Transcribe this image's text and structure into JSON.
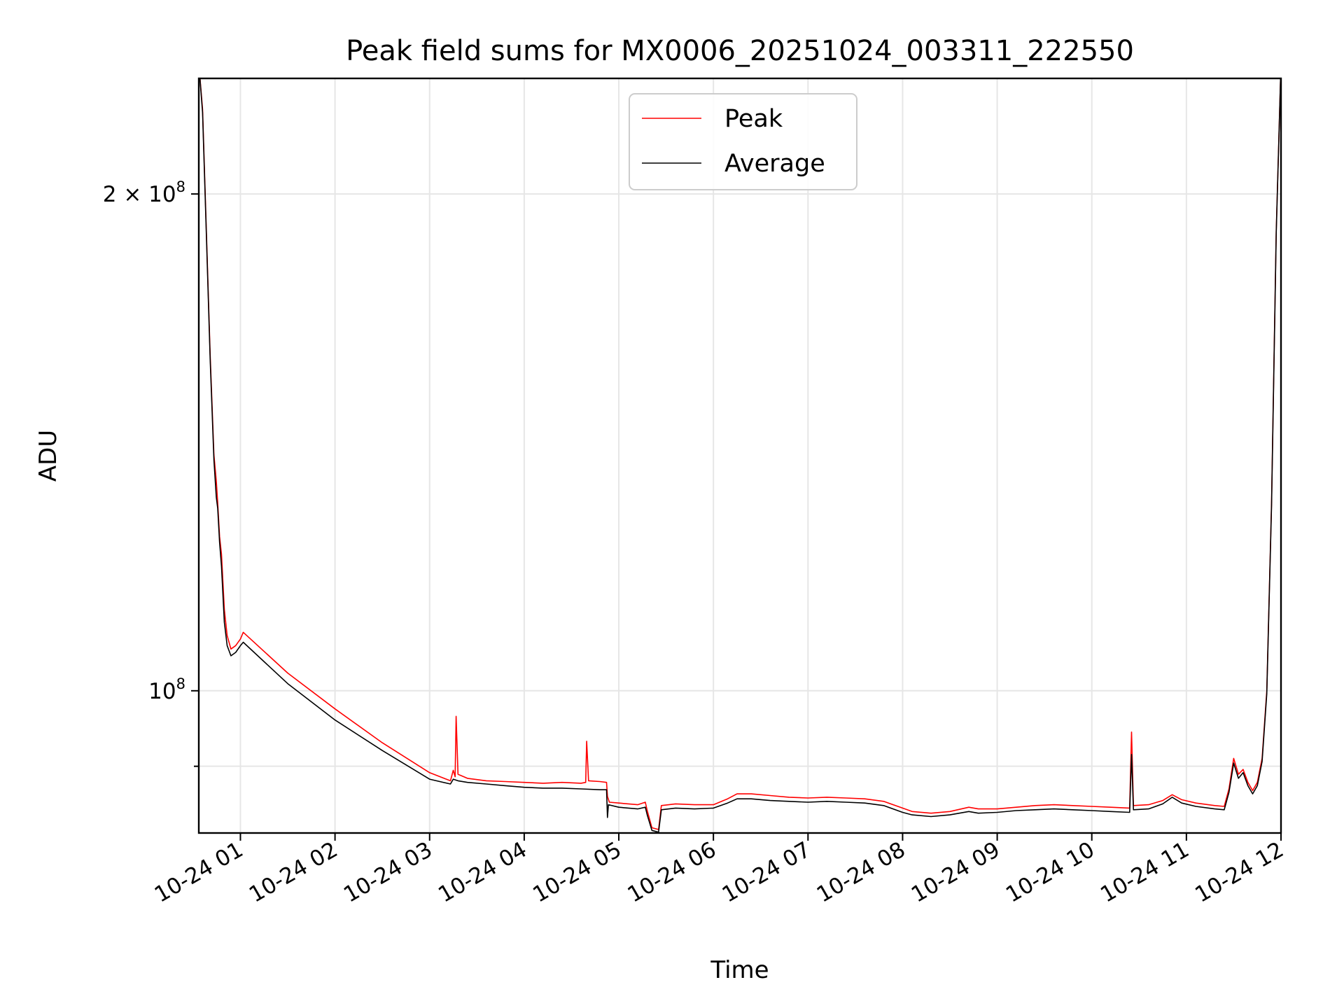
{
  "chart_data": {
    "type": "line",
    "title": "Peak field sums for MX0006_20251024_003311_222550",
    "xlabel": "Time",
    "ylabel": "ADU",
    "x_unit": "hours since 2025-10-24 00:00",
    "y_scale": "log",
    "xlim": [
      0.56,
      12.0
    ],
    "ylim": [
      82000000,
      235000000
    ],
    "grid": true,
    "legend_position": "upper center",
    "x_ticks": [
      {
        "value": 1,
        "label": "10-24 01"
      },
      {
        "value": 2,
        "label": "10-24 02"
      },
      {
        "value": 3,
        "label": "10-24 03"
      },
      {
        "value": 4,
        "label": "10-24 04"
      },
      {
        "value": 5,
        "label": "10-24 05"
      },
      {
        "value": 6,
        "label": "10-24 06"
      },
      {
        "value": 7,
        "label": "10-24 07"
      },
      {
        "value": 8,
        "label": "10-24 08"
      },
      {
        "value": 9,
        "label": "10-24 09"
      },
      {
        "value": 10,
        "label": "10-24 10"
      },
      {
        "value": 11,
        "label": "10-24 11"
      },
      {
        "value": 12,
        "label": "10-24 12"
      }
    ],
    "y_ticks": [
      {
        "value": 100000000,
        "mantissa": "",
        "base": "10",
        "exp": "8"
      },
      {
        "value": 200000000,
        "mantissa": "2 × ",
        "base": "10",
        "exp": "8"
      }
    ],
    "y_minor_ticks": [
      90000000
    ],
    "series": [
      {
        "name": "Peak",
        "color": "#ff0000",
        "points": [
          [
            0.56,
            240000000
          ],
          [
            0.6,
            225000000
          ],
          [
            0.64,
            190000000
          ],
          [
            0.68,
            160000000
          ],
          [
            0.72,
            139000000
          ],
          [
            0.745,
            134000000
          ],
          [
            0.76,
            130000000
          ],
          [
            0.78,
            124000000
          ],
          [
            0.8,
            121000000
          ],
          [
            0.83,
            112000000
          ],
          [
            0.86,
            108000000
          ],
          [
            0.9,
            106000000
          ],
          [
            0.95,
            106500000
          ],
          [
            1.0,
            107500000
          ],
          [
            1.03,
            108500000
          ],
          [
            1.5,
            102500000
          ],
          [
            2.0,
            97500000
          ],
          [
            2.5,
            93000000
          ],
          [
            3.0,
            89200000
          ],
          [
            3.22,
            88200000
          ],
          [
            3.25,
            89500000
          ],
          [
            3.27,
            88700000
          ],
          [
            3.28,
            96500000
          ],
          [
            3.3,
            89000000
          ],
          [
            3.4,
            88500000
          ],
          [
            3.6,
            88200000
          ],
          [
            3.8,
            88100000
          ],
          [
            4.0,
            88000000
          ],
          [
            4.2,
            87900000
          ],
          [
            4.4,
            88000000
          ],
          [
            4.6,
            87900000
          ],
          [
            4.65,
            88000000
          ],
          [
            4.66,
            93200000
          ],
          [
            4.68,
            88200000
          ],
          [
            4.8,
            88100000
          ],
          [
            4.87,
            88000000
          ],
          [
            4.88,
            86300000
          ],
          [
            4.9,
            85600000
          ],
          [
            5.0,
            85500000
          ],
          [
            5.2,
            85300000
          ],
          [
            5.28,
            85600000
          ],
          [
            5.3,
            84600000
          ],
          [
            5.35,
            82600000
          ],
          [
            5.42,
            82400000
          ],
          [
            5.45,
            85200000
          ],
          [
            5.6,
            85400000
          ],
          [
            5.8,
            85300000
          ],
          [
            6.0,
            85300000
          ],
          [
            6.15,
            86000000
          ],
          [
            6.25,
            86600000
          ],
          [
            6.4,
            86600000
          ],
          [
            6.6,
            86400000
          ],
          [
            6.8,
            86200000
          ],
          [
            7.0,
            86100000
          ],
          [
            7.2,
            86200000
          ],
          [
            7.4,
            86100000
          ],
          [
            7.6,
            86000000
          ],
          [
            7.8,
            85700000
          ],
          [
            8.0,
            84900000
          ],
          [
            8.1,
            84500000
          ],
          [
            8.3,
            84300000
          ],
          [
            8.5,
            84500000
          ],
          [
            8.7,
            85000000
          ],
          [
            8.8,
            84800000
          ],
          [
            9.0,
            84800000
          ],
          [
            9.2,
            85000000
          ],
          [
            9.4,
            85200000
          ],
          [
            9.6,
            85300000
          ],
          [
            9.8,
            85200000
          ],
          [
            10.0,
            85100000
          ],
          [
            10.2,
            85000000
          ],
          [
            10.4,
            84900000
          ],
          [
            10.42,
            94400000
          ],
          [
            10.44,
            85200000
          ],
          [
            10.6,
            85300000
          ],
          [
            10.75,
            85800000
          ],
          [
            10.85,
            86500000
          ],
          [
            10.95,
            85900000
          ],
          [
            11.1,
            85500000
          ],
          [
            11.3,
            85200000
          ],
          [
            11.4,
            85100000
          ],
          [
            11.45,
            87200000
          ],
          [
            11.5,
            91000000
          ],
          [
            11.55,
            89000000
          ],
          [
            11.6,
            89600000
          ],
          [
            11.65,
            88000000
          ],
          [
            11.7,
            87000000
          ],
          [
            11.75,
            88000000
          ],
          [
            11.8,
            91000000
          ],
          [
            11.85,
            100000000
          ],
          [
            11.9,
            130000000
          ],
          [
            11.95,
            190000000
          ],
          [
            12.0,
            240000000
          ]
        ]
      },
      {
        "name": "Average",
        "color": "#000000",
        "points": [
          [
            0.56,
            240000000
          ],
          [
            0.6,
            224000000
          ],
          [
            0.64,
            189000000
          ],
          [
            0.68,
            159000000
          ],
          [
            0.72,
            138000000
          ],
          [
            0.745,
            131000000
          ],
          [
            0.76,
            129000000
          ],
          [
            0.78,
            123000000
          ],
          [
            0.8,
            119000000
          ],
          [
            0.83,
            110000000
          ],
          [
            0.86,
            106500000
          ],
          [
            0.9,
            105000000
          ],
          [
            0.95,
            105500000
          ],
          [
            1.0,
            106500000
          ],
          [
            1.03,
            107000000
          ],
          [
            1.5,
            101000000
          ],
          [
            2.0,
            96000000
          ],
          [
            2.5,
            92000000
          ],
          [
            3.0,
            88400000
          ],
          [
            3.22,
            87800000
          ],
          [
            3.25,
            88400000
          ],
          [
            3.3,
            88200000
          ],
          [
            3.4,
            88000000
          ],
          [
            3.6,
            87800000
          ],
          [
            3.8,
            87600000
          ],
          [
            4.0,
            87400000
          ],
          [
            4.2,
            87300000
          ],
          [
            4.4,
            87300000
          ],
          [
            4.6,
            87200000
          ],
          [
            4.8,
            87100000
          ],
          [
            4.87,
            87100000
          ],
          [
            4.88,
            83800000
          ],
          [
            4.89,
            85300000
          ],
          [
            5.0,
            85000000
          ],
          [
            5.2,
            84800000
          ],
          [
            5.28,
            85000000
          ],
          [
            5.3,
            84100000
          ],
          [
            5.35,
            82300000
          ],
          [
            5.42,
            82100000
          ],
          [
            5.45,
            84700000
          ],
          [
            5.6,
            84900000
          ],
          [
            5.8,
            84800000
          ],
          [
            6.0,
            84900000
          ],
          [
            6.15,
            85500000
          ],
          [
            6.25,
            86000000
          ],
          [
            6.4,
            86000000
          ],
          [
            6.6,
            85800000
          ],
          [
            6.8,
            85700000
          ],
          [
            7.0,
            85600000
          ],
          [
            7.2,
            85700000
          ],
          [
            7.4,
            85600000
          ],
          [
            7.6,
            85500000
          ],
          [
            7.8,
            85200000
          ],
          [
            8.0,
            84400000
          ],
          [
            8.1,
            84100000
          ],
          [
            8.3,
            83900000
          ],
          [
            8.5,
            84100000
          ],
          [
            8.7,
            84500000
          ],
          [
            8.8,
            84300000
          ],
          [
            9.0,
            84400000
          ],
          [
            9.2,
            84600000
          ],
          [
            9.4,
            84700000
          ],
          [
            9.6,
            84800000
          ],
          [
            9.8,
            84700000
          ],
          [
            10.0,
            84600000
          ],
          [
            10.2,
            84500000
          ],
          [
            10.4,
            84400000
          ],
          [
            10.42,
            91500000
          ],
          [
            10.44,
            84700000
          ],
          [
            10.6,
            84800000
          ],
          [
            10.75,
            85400000
          ],
          [
            10.85,
            86200000
          ],
          [
            10.95,
            85500000
          ],
          [
            11.1,
            85100000
          ],
          [
            11.3,
            84800000
          ],
          [
            11.4,
            84700000
          ],
          [
            11.45,
            86800000
          ],
          [
            11.5,
            90400000
          ],
          [
            11.55,
            88500000
          ],
          [
            11.6,
            89200000
          ],
          [
            11.65,
            87600000
          ],
          [
            11.7,
            86600000
          ],
          [
            11.75,
            87600000
          ],
          [
            11.8,
            90600000
          ],
          [
            11.85,
            99600000
          ],
          [
            11.9,
            129500000
          ],
          [
            11.95,
            189500000
          ],
          [
            12.0,
            240000000
          ]
        ]
      }
    ]
  }
}
